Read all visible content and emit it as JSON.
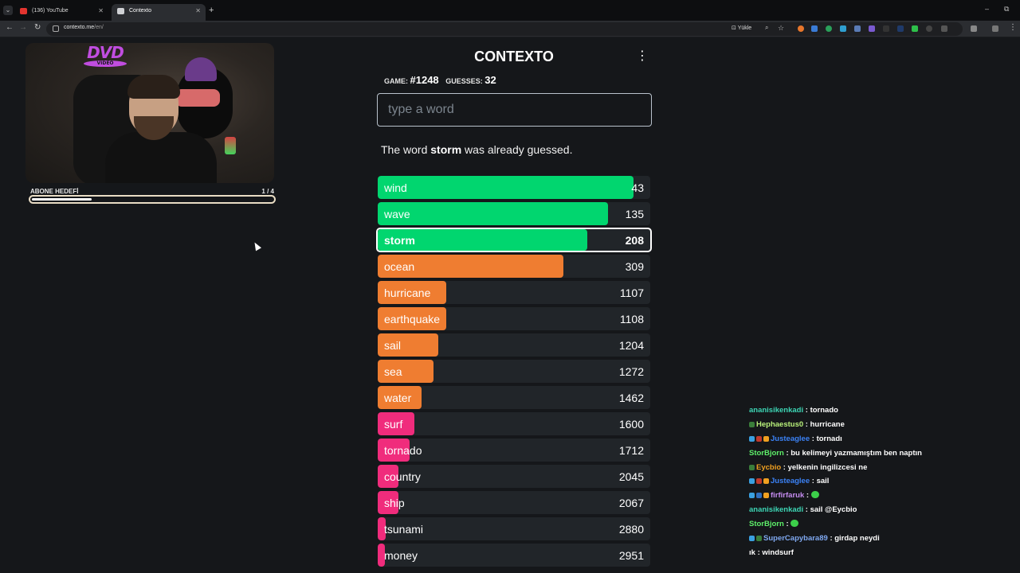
{
  "browser": {
    "tabs": [
      {
        "title": "(136) YouTube",
        "active": false
      },
      {
        "title": "Contexto",
        "active": true
      }
    ],
    "url_host": "contexto.me",
    "url_path": "/en/",
    "install_label": "Yükle",
    "window_controls": [
      "–",
      "⧉"
    ]
  },
  "stream": {
    "logo_text": "DVD",
    "logo_sub": "VIDEO",
    "goal_label": "ABONE HEDEFİ",
    "goal_count": "1 / 4",
    "goal_progress": 0.25
  },
  "game": {
    "title": "CONTEXTO",
    "menu_icon": "more-vertical-icon",
    "game_label": "GAME:",
    "game_number": "#1248",
    "guesses_label": "GUESSES:",
    "guesses_count": "32",
    "input_placeholder": "type a word",
    "message_prefix": "The word",
    "message_word": "storm",
    "message_suffix": "was already guessed.",
    "colors": {
      "green": "#01d66f",
      "orange": "#ef7d31",
      "pink": "#f02c7c",
      "row_bg": "#212529"
    },
    "guesses": [
      {
        "word": "wind",
        "distance": "43",
        "color": "green",
        "fill": 0.94
      },
      {
        "word": "wave",
        "distance": "135",
        "color": "green",
        "fill": 0.846
      },
      {
        "word": "storm",
        "distance": "208",
        "color": "green",
        "fill": 0.77,
        "current": true
      },
      {
        "word": "ocean",
        "distance": "309",
        "color": "orange",
        "fill": 0.681
      },
      {
        "word": "hurricane",
        "distance": "1107",
        "color": "orange",
        "fill": 0.25
      },
      {
        "word": "earthquake",
        "distance": "1108",
        "color": "orange",
        "fill": 0.25
      },
      {
        "word": "sail",
        "distance": "1204",
        "color": "orange",
        "fill": 0.222
      },
      {
        "word": "sea",
        "distance": "1272",
        "color": "orange",
        "fill": 0.205
      },
      {
        "word": "water",
        "distance": "1462",
        "color": "orange",
        "fill": 0.161
      },
      {
        "word": "surf",
        "distance": "1600",
        "color": "pink",
        "fill": 0.135
      },
      {
        "word": "tornado",
        "distance": "1712",
        "color": "pink",
        "fill": 0.117
      },
      {
        "word": "country",
        "distance": "2045",
        "color": "pink",
        "fill": 0.076
      },
      {
        "word": "ship",
        "distance": "2067",
        "color": "pink",
        "fill": 0.076
      },
      {
        "word": "tsunami",
        "distance": "2880",
        "color": "pink",
        "fill": 0.029
      },
      {
        "word": "money",
        "distance": "2951",
        "color": "pink",
        "fill": 0.026
      }
    ]
  },
  "chat": [
    {
      "user": "ananisikenkadi",
      "color": "#3dd6b5",
      "badges": [],
      "text": ": tornado"
    },
    {
      "user": "Hephaestus0",
      "color": "#b8f07a",
      "badges": [
        "#3a7d3a"
      ],
      "text": ": hurricane"
    },
    {
      "user": "Justeaglee",
      "color": "#3b82f6",
      "badges": [
        "#3aa0e0",
        "#c0392b",
        "#f0a020"
      ],
      "text": ": tornadı"
    },
    {
      "user": "StorBjorn",
      "color": "#5ef06a",
      "badges": [],
      "text": ": bu kelimeyi yazmamıştım ben naptın"
    },
    {
      "user": "Eycbio",
      "color": "#f0a020",
      "badges": [
        "#3a7d3a"
      ],
      "text": ": yelkenin ingilizcesi ne"
    },
    {
      "user": "Justeaglee",
      "color": "#3b82f6",
      "badges": [
        "#3aa0e0",
        "#c0392b",
        "#f0a020"
      ],
      "text": ": sail"
    },
    {
      "user": "firfirfaruk",
      "color": "#c58cf0",
      "badges": [
        "#3aa0e0",
        "#2f6fbf",
        "#f0a020"
      ],
      "text": ":",
      "emote": true
    },
    {
      "user": "ananisikenkadi",
      "color": "#3dd6b5",
      "badges": [],
      "text": ": sail @Eycbio"
    },
    {
      "user": "StorBjorn",
      "color": "#5ef06a",
      "badges": [],
      "text": ":",
      "emote": true
    },
    {
      "user": "SuperCapybara89",
      "color": "#7fa8f0",
      "badges": [
        "#3aa0e0",
        "#3a7d3a"
      ],
      "text": ": girdap neydi"
    },
    {
      "user": "ık",
      "color": "#ffffff",
      "badges": [],
      "text": ": windsurf"
    }
  ]
}
